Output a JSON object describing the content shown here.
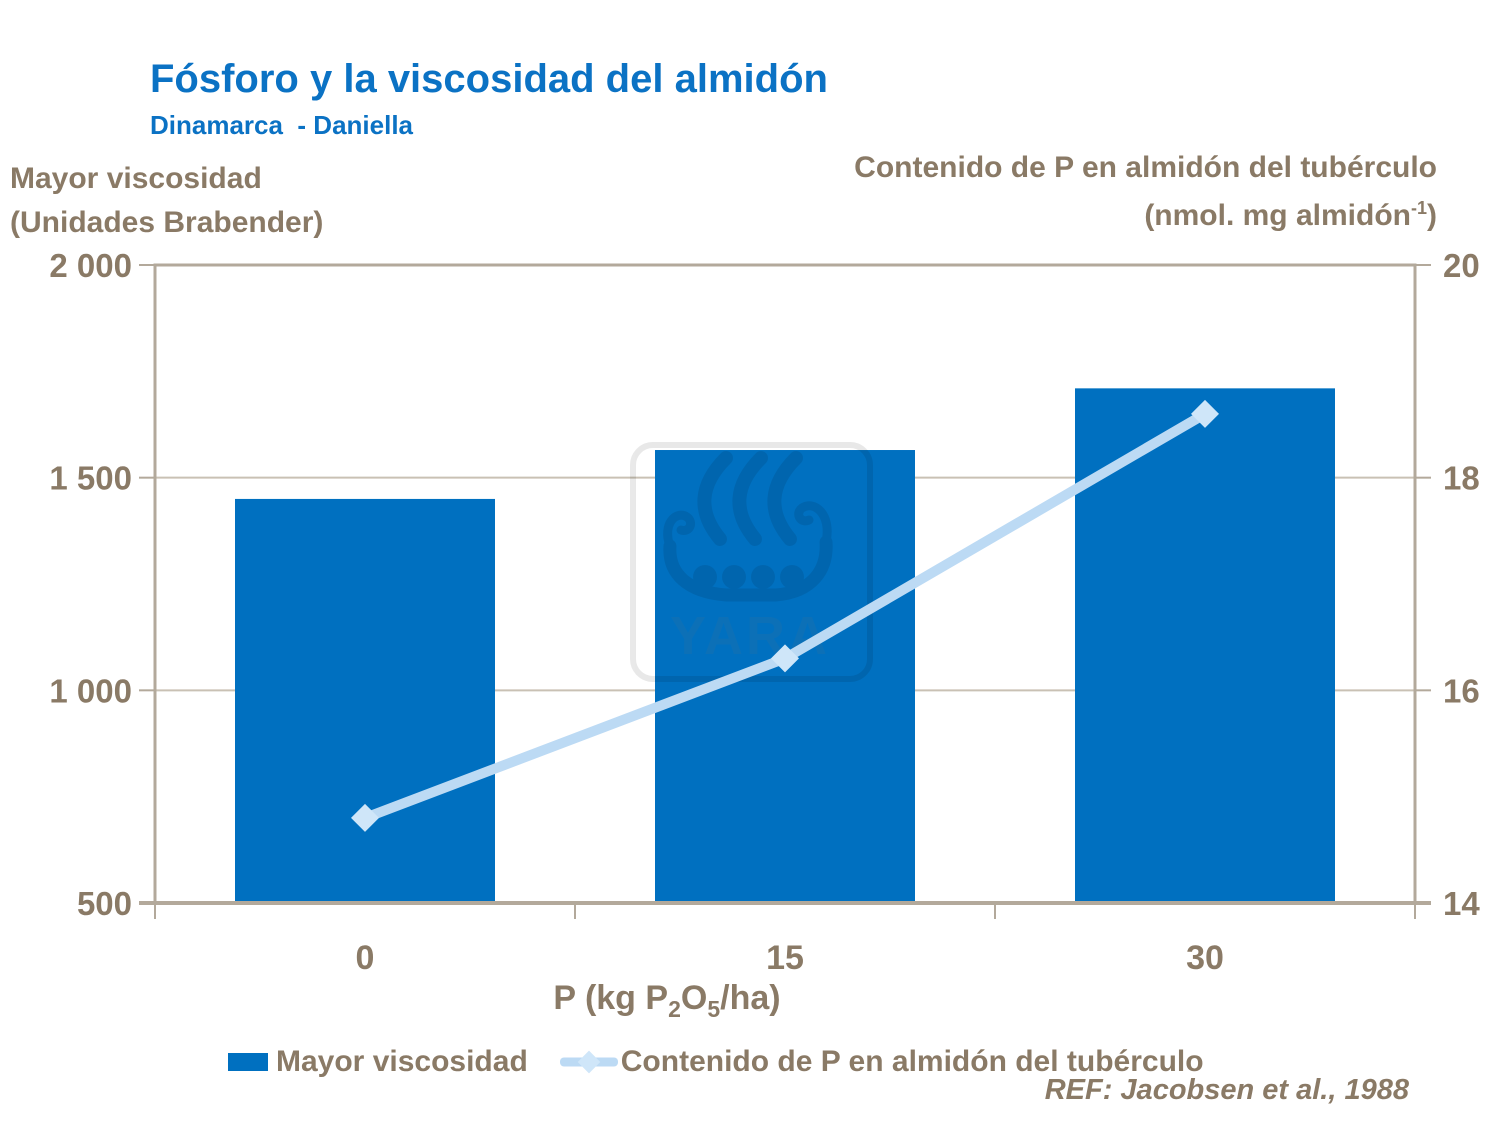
{
  "header": {
    "title": "Fósforo y la viscosidad del almidón",
    "subtitle": "Dinamarca  - Daniella"
  },
  "watermark": {
    "text": "YARA"
  },
  "colors": {
    "title_blue": "#0B72C4",
    "bar_blue": "#0070C0",
    "line_light_blue": "#BCDAF4",
    "marker_light_blue": "#CFE6F9",
    "text_brown": "#8A7A66",
    "axis_taupe": "#B3A99B",
    "gridline": "#C9C1B4",
    "background": "#FFFFFF"
  },
  "chart_data": {
    "type": "bar",
    "subtype": "combo-bar-line-dual-axis",
    "title": "Fósforo y la viscosidad del almidón",
    "subtitle": "Dinamarca  - Daniella",
    "categories": [
      "0",
      "15",
      "30"
    ],
    "x_axis": {
      "title_prefix": "P (kg P",
      "title_sub1": "2",
      "title_mid": "O",
      "title_sub2": "5",
      "title_suffix": "/ha)",
      "tick_labels": [
        "0",
        "15",
        "30"
      ]
    },
    "left_axis": {
      "title_lines": [
        "Mayor viscosidad",
        "(Unidades Brabender)"
      ],
      "min": 500,
      "max": 2000,
      "ticks": [
        500,
        1000,
        1500,
        2000
      ],
      "tick_labels": [
        "500",
        "1 000",
        "1 500",
        "2 000"
      ]
    },
    "right_axis": {
      "title_line1": "Contenido de P en almidón del tubérculo",
      "title_line2_prefix": "(nmol. mg almidón",
      "title_line2_sup": "-1",
      "title_line2_suffix": ")",
      "min": 14,
      "max": 20,
      "ticks": [
        14,
        16,
        18,
        20
      ],
      "tick_labels": [
        "14",
        "16",
        "18",
        "20"
      ]
    },
    "grid": "horizontal",
    "legend_position": "bottom",
    "series": [
      {
        "name": "Mayor viscosidad",
        "type": "bar",
        "axis": "left",
        "color": "#0070C0",
        "values": [
          1450,
          1565,
          1710
        ]
      },
      {
        "name": "Contenido de P en almidón del tubérculo",
        "type": "line",
        "axis": "right",
        "color": "#BCDAF4",
        "marker": "diamond",
        "marker_color": "#CFE6F9",
        "values": [
          14.8,
          16.3,
          18.6
        ]
      }
    ],
    "ref": "REF: Jacobsen et al., 1988"
  }
}
